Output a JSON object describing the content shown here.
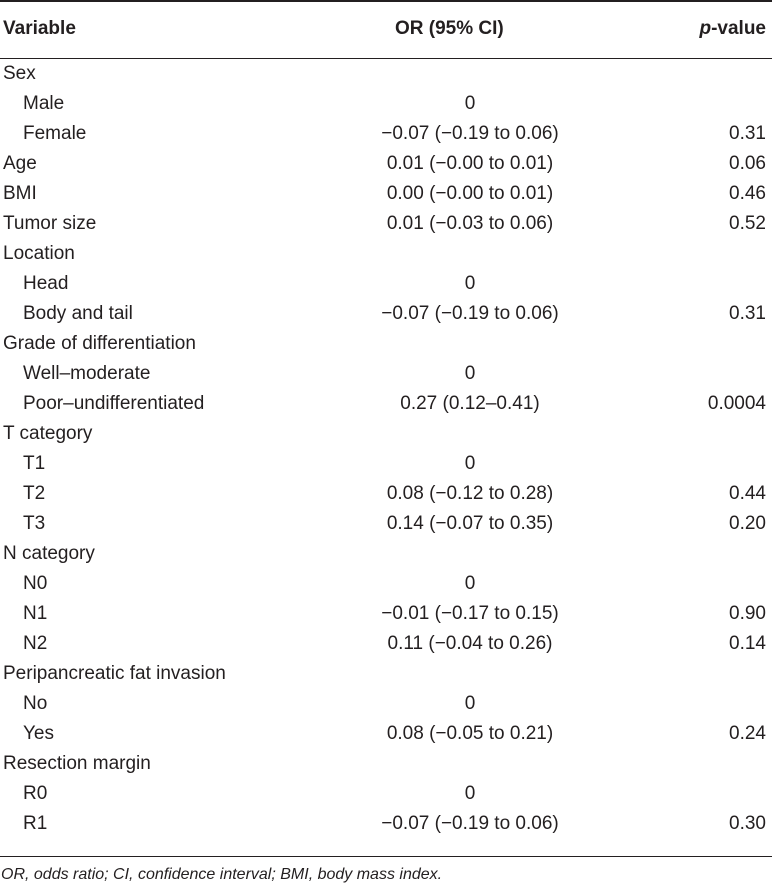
{
  "header": {
    "variable": "Variable",
    "or_ci": "OR (95% CI)",
    "p_prefix": "p",
    "p_suffix": "-value"
  },
  "rows": [
    {
      "variable": "Sex",
      "indent": false,
      "or": "",
      "p": ""
    },
    {
      "variable": "Male",
      "indent": true,
      "or": "0",
      "p": ""
    },
    {
      "variable": "Female",
      "indent": true,
      "or": "−0.07 (−0.19 to 0.06)",
      "p": "0.31"
    },
    {
      "variable": "Age",
      "indent": false,
      "or": "0.01 (−0.00 to 0.01)",
      "p": "0.06"
    },
    {
      "variable": "BMI",
      "indent": false,
      "or": "0.00 (−0.00 to 0.01)",
      "p": "0.46"
    },
    {
      "variable": "Tumor size",
      "indent": false,
      "or": "0.01 (−0.03 to 0.06)",
      "p": "0.52"
    },
    {
      "variable": "Location",
      "indent": false,
      "or": "",
      "p": ""
    },
    {
      "variable": "Head",
      "indent": true,
      "or": "0",
      "p": ""
    },
    {
      "variable": "Body and tail",
      "indent": true,
      "or": "−0.07 (−0.19 to 0.06)",
      "p": "0.31"
    },
    {
      "variable": "Grade of differentiation",
      "indent": false,
      "or": "",
      "p": ""
    },
    {
      "variable": "Well–moderate",
      "indent": true,
      "or": "0",
      "p": ""
    },
    {
      "variable": "Poor–undifferentiated",
      "indent": true,
      "or": "0.27 (0.12–0.41)",
      "p": "0.0004"
    },
    {
      "variable": "T category",
      "indent": false,
      "or": "",
      "p": ""
    },
    {
      "variable": "T1",
      "indent": true,
      "or": "0",
      "p": ""
    },
    {
      "variable": "T2",
      "indent": true,
      "or": "0.08 (−0.12 to 0.28)",
      "p": "0.44"
    },
    {
      "variable": "T3",
      "indent": true,
      "or": "0.14 (−0.07 to 0.35)",
      "p": "0.20"
    },
    {
      "variable": "N category",
      "indent": false,
      "or": "",
      "p": ""
    },
    {
      "variable": "N0",
      "indent": true,
      "or": "0",
      "p": ""
    },
    {
      "variable": "N1",
      "indent": true,
      "or": "−0.01 (−0.17 to 0.15)",
      "p": "0.90"
    },
    {
      "variable": "N2",
      "indent": true,
      "or": "0.11 (−0.04 to 0.26)",
      "p": "0.14"
    },
    {
      "variable": "Peripancreatic fat invasion",
      "indent": false,
      "or": "",
      "p": ""
    },
    {
      "variable": "No",
      "indent": true,
      "or": "0",
      "p": ""
    },
    {
      "variable": "Yes",
      "indent": true,
      "or": "0.08 (−0.05 to 0.21)",
      "p": "0.24"
    },
    {
      "variable": "Resection margin",
      "indent": false,
      "or": "",
      "p": ""
    },
    {
      "variable": "R0",
      "indent": true,
      "or": "0",
      "p": ""
    },
    {
      "variable": "R1",
      "indent": true,
      "or": "−0.07 (−0.19 to 0.06)",
      "p": "0.30"
    }
  ],
  "footnote": "OR, odds ratio; CI, confidence interval; BMI, body mass index."
}
